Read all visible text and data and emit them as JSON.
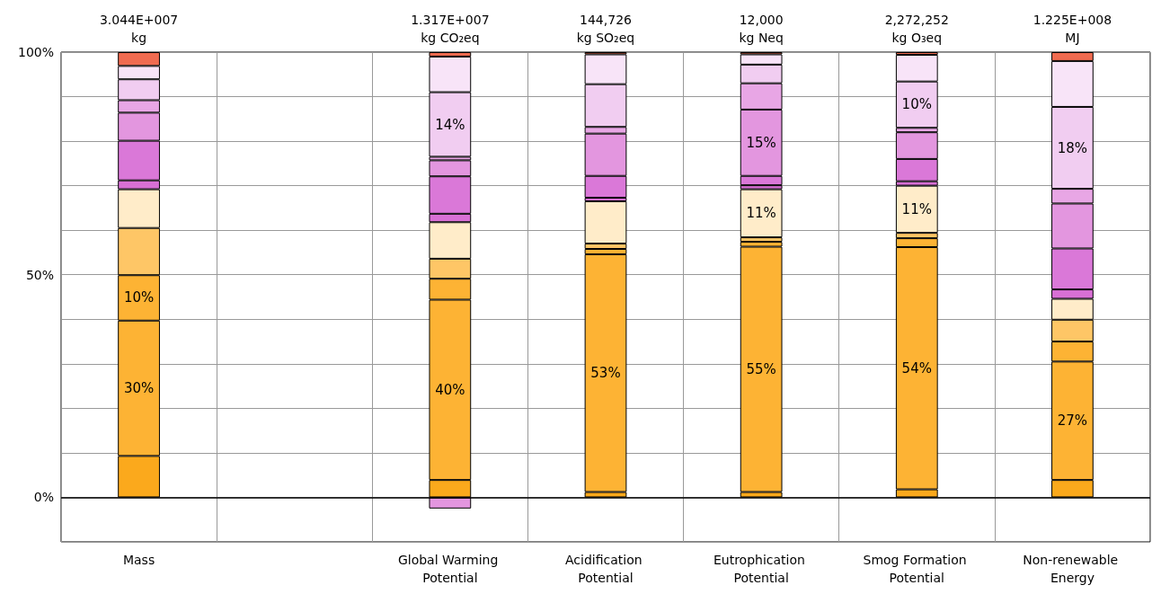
{
  "chart_data": {
    "type": "bar",
    "stacked": true,
    "categories": [
      "Mass",
      null,
      "Global Warming Potential",
      "Acidification Potential",
      "Eutrophication Potential",
      "Smog Formation Potential",
      "Non-renewable Energy"
    ],
    "annotations": [
      "3.044E+007\nkg",
      "1.317E+007\nkg CO₂eq",
      "144,726\nkg SO₂eq",
      "12,000\nkg Neq",
      "2,272,252\nkg O₃eq",
      "1.225E+008\nMJ"
    ],
    "series": [
      {
        "color": "#fba91c",
        "values": [
          9.3,
          null,
          3.9,
          1.2,
          1.2,
          1.8,
          3.9
        ]
      },
      {
        "color": "#fdb334",
        "values": [
          30.4,
          null,
          40.5,
          53.4,
          55.1,
          54.4,
          26.6
        ],
        "value_labels": [
          "30%",
          null,
          "40%",
          "53%",
          "55%",
          "54%",
          "27%"
        ]
      },
      {
        "color": "#fdb334",
        "values": [
          10.2,
          null,
          4.7,
          1.2,
          1.1,
          2.0,
          4.5
        ],
        "value_labels": [
          "10%",
          null,
          null,
          null,
          null,
          null,
          null
        ]
      },
      {
        "color": "#fec666",
        "values": [
          10.6,
          null,
          4.5,
          1.2,
          1.0,
          1.2,
          4.9
        ]
      },
      {
        "color": "#ffecc9",
        "values": [
          8.7,
          null,
          8.2,
          9.5,
          10.8,
          10.6,
          4.7
        ],
        "value_labels": [
          null,
          null,
          null,
          null,
          "11%",
          "11%",
          null
        ]
      },
      {
        "color": "#d870d5",
        "values": [
          2.0,
          null,
          1.9,
          0.8,
          0.9,
          1.0,
          2.1
        ]
      },
      {
        "color": "#da78d8",
        "values": [
          8.9,
          null,
          8.4,
          4.9,
          2.1,
          5.0,
          9.2
        ]
      },
      {
        "color": "#e396df",
        "values": [
          6.3,
          null,
          3.6,
          9.5,
          14.9,
          6.0,
          10.1
        ],
        "value_labels": [
          null,
          null,
          null,
          null,
          "15%",
          null,
          null
        ]
      },
      {
        "color": "#e8a6e5",
        "values": [
          2.8,
          null,
          0.8,
          1.5,
          5.9,
          1.0,
          3.3
        ]
      },
      {
        "color": "#f1cdf1",
        "values": [
          4.7,
          null,
          14.5,
          9.6,
          4.2,
          10.4,
          18.4
        ],
        "value_labels": [
          null,
          null,
          "14%",
          null,
          null,
          "10%",
          "18%"
        ]
      },
      {
        "color": "#f8e4f8",
        "values": [
          3.0,
          null,
          8.0,
          6.7,
          2.3,
          6.0,
          10.3
        ]
      },
      {
        "color": "#f06b50",
        "values": [
          3.1,
          null,
          1.0,
          0.5,
          0.5,
          0.6,
          2.0
        ]
      },
      {
        "color": "#e396df",
        "values": [
          null,
          null,
          -2.5,
          null,
          null,
          null,
          null
        ]
      }
    ],
    "ylim": [
      -10,
      100
    ],
    "yticks": [
      {
        "value": 0,
        "label": "0%"
      },
      {
        "value": 10,
        "label": null
      },
      {
        "value": 20,
        "label": null
      },
      {
        "value": 30,
        "label": null
      },
      {
        "value": 40,
        "label": null
      },
      {
        "value": 50,
        "label": "50%"
      },
      {
        "value": 60,
        "label": null
      },
      {
        "value": 70,
        "label": null
      },
      {
        "value": 80,
        "label": null
      },
      {
        "value": 90,
        "label": null
      },
      {
        "value": 100,
        "label": "100%"
      }
    ],
    "ref_lines": [
      {
        "axis": "y",
        "value": 0,
        "color": "#000000"
      }
    ],
    "grid": true
  }
}
